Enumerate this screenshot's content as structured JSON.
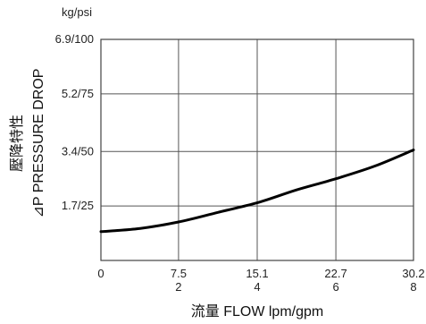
{
  "chart_data": {
    "type": "line",
    "y_unit_label": "kg/psi",
    "xlabel": "流量 FLOW lpm/gpm",
    "ylabel_cjk": "壓降特性",
    "ylabel": "⊿P PRESSURE DROP",
    "xlim": [
      0,
      30.2
    ],
    "ylim": [
      0,
      6.9
    ],
    "x_ticks": [
      {
        "value": 0,
        "label_lpm": "0",
        "label_gpm": ""
      },
      {
        "value": 7.5,
        "label_lpm": "7.5",
        "label_gpm": "2"
      },
      {
        "value": 15.1,
        "label_lpm": "15.1",
        "label_gpm": "4"
      },
      {
        "value": 22.7,
        "label_lpm": "22.7",
        "label_gpm": "6"
      },
      {
        "value": 30.2,
        "label_lpm": "30.2",
        "label_gpm": "8"
      }
    ],
    "y_ticks": [
      {
        "value": 1.7,
        "label": "1.7/25"
      },
      {
        "value": 3.4,
        "label": "3.4/50"
      },
      {
        "value": 5.2,
        "label": "5.2/75"
      },
      {
        "value": 6.9,
        "label": "6.9/100"
      }
    ],
    "grid": true,
    "series": [
      {
        "x": [
          0,
          3.8,
          7.5,
          11.3,
          15.1,
          18.9,
          22.7,
          26.5,
          30.2
        ],
        "y": [
          0.9,
          1.0,
          1.2,
          1.5,
          1.8,
          2.2,
          2.55,
          2.95,
          3.45
        ]
      }
    ]
  }
}
